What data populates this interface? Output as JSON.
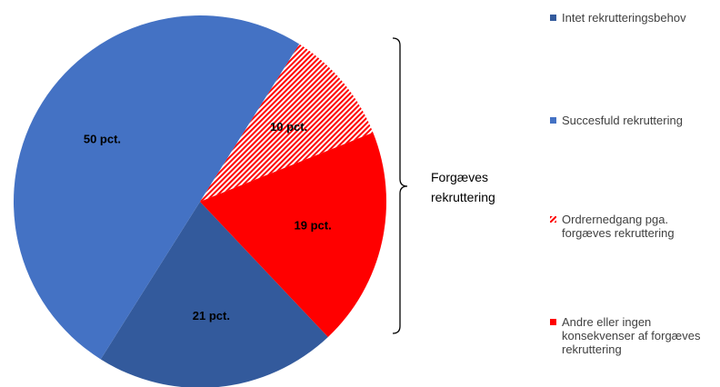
{
  "chart_data": {
    "type": "pie",
    "categories": [
      "Intet rekrutteringsbehov",
      "Succesfuld rekruttering",
      "Ordrernedgang pga. forgæves rekruttering",
      "Andre eller ingen konsekvenser af forgæves rekruttering"
    ],
    "values": [
      21,
      50,
      10,
      19
    ],
    "value_labels": [
      "21 pct.",
      "50 pct.",
      "10 pct.",
      "19 pct."
    ],
    "colors": [
      "#335a9c",
      "#4472c4",
      "#ff0000",
      "#ff0000"
    ],
    "hatched": [
      false,
      false,
      true,
      false
    ],
    "annotation": "Forgæves rekruttering",
    "legend": "right"
  }
}
